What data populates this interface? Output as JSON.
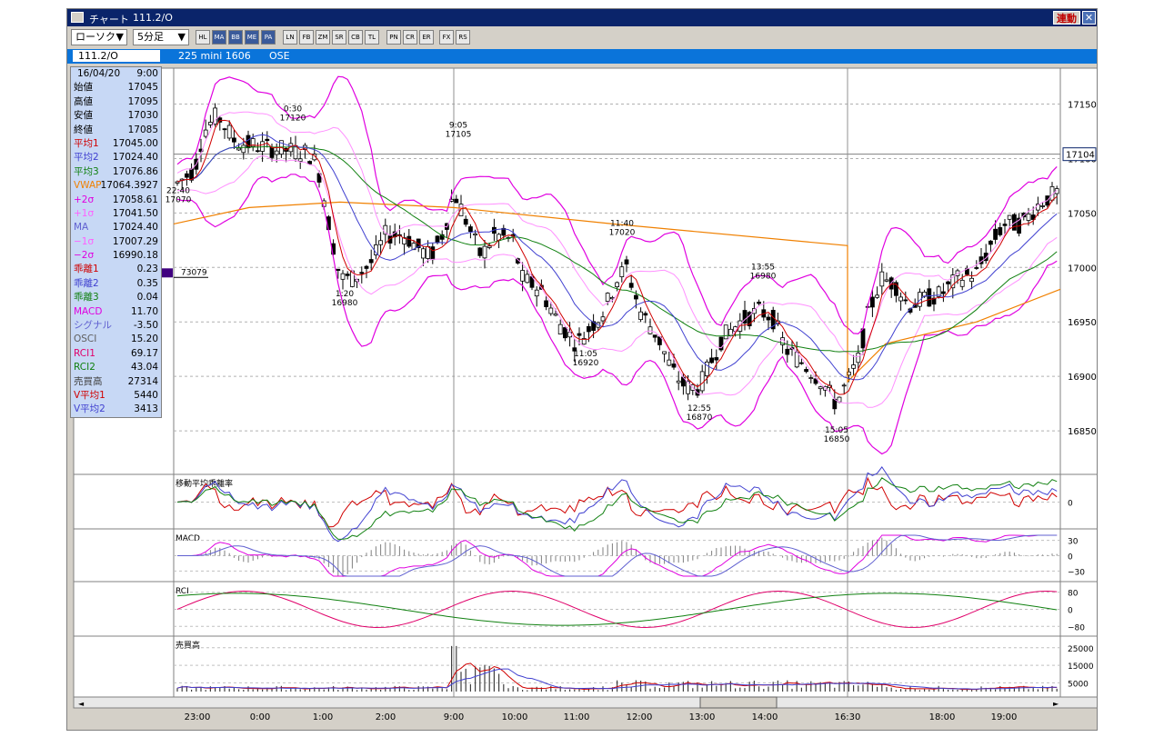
{
  "window": {
    "title": "チャート",
    "code_title": "111.2/O",
    "link_button": "連動",
    "close_glyph": "✕"
  },
  "toolbar": {
    "chart_type": "ローソク",
    "interval": "5分足",
    "dropdown_glyph": "▼",
    "buttons": [
      "HL",
      "MA",
      "BB",
      "ME",
      "PA",
      "LN",
      "FB",
      "ZM",
      "SR",
      "CB",
      "TL",
      "PN",
      "CR",
      "ER",
      "FX",
      "RS"
    ]
  },
  "infobar": {
    "code": "111.2/O",
    "name": "225 mini 1606",
    "exchange": "OSE"
  },
  "datapanel": {
    "date": "16/04/20",
    "time": "9:00",
    "rows": [
      {
        "label": "始値",
        "value": "17045",
        "color": "#000000"
      },
      {
        "label": "高値",
        "value": "17095",
        "color": "#000000"
      },
      {
        "label": "安値",
        "value": "17030",
        "color": "#000000"
      },
      {
        "label": "終値",
        "value": "17085",
        "color": "#000000"
      },
      {
        "label": "平均1",
        "value": "17045.00",
        "color": "#d00000"
      },
      {
        "label": "平均2",
        "value": "17024.40",
        "color": "#4040d0"
      },
      {
        "label": "平均3",
        "value": "17076.86",
        "color": "#108010"
      },
      {
        "label": "VWAP",
        "value": "17064.3927",
        "color": "#f08000"
      },
      {
        "label": "+2σ",
        "value": "17058.61",
        "color": "#e000e0"
      },
      {
        "label": "+1σ",
        "value": "17041.50",
        "color": "#ff60ff"
      },
      {
        "label": "MA",
        "value": "17024.40",
        "color": "#6060d0"
      },
      {
        "label": "−1σ",
        "value": "17007.29",
        "color": "#ff60ff"
      },
      {
        "label": "−2σ",
        "value": "16990.18",
        "color": "#e000e0"
      },
      {
        "label": "乖離1",
        "value": "0.23",
        "color": "#d00000"
      },
      {
        "label": "乖離2",
        "value": "0.35",
        "color": "#4040d0"
      },
      {
        "label": "乖離3",
        "value": "0.04",
        "color": "#108010"
      },
      {
        "label": "MACD",
        "value": "11.70",
        "color": "#e000e0"
      },
      {
        "label": "シグナル",
        "value": "-3.50",
        "color": "#6060d0"
      },
      {
        "label": "OSCI",
        "value": "15.20",
        "color": "#606060"
      },
      {
        "label": "RCI1",
        "value": "69.17",
        "color": "#e0006a"
      },
      {
        "label": "RCI2",
        "value": "43.04",
        "color": "#108010"
      },
      {
        "label": "売買高",
        "value": "27314",
        "color": "#404040"
      },
      {
        "label": "V平均1",
        "value": "5440",
        "color": "#d00000"
      },
      {
        "label": "V平均2",
        "value": "3413",
        "color": "#4040d0"
      }
    ]
  },
  "price_axis": {
    "ticks": [
      "17150",
      "17100",
      "17050",
      "17000",
      "16950",
      "16900",
      "16850"
    ],
    "current_price": "17104",
    "left_marker": "73079"
  },
  "annotations": [
    {
      "time": "0:30",
      "price": "17120"
    },
    {
      "time": "9:05",
      "price": "17105"
    },
    {
      "time": "22:40",
      "price": "17070"
    },
    {
      "time": "1:20",
      "price": "16980"
    },
    {
      "time": "11:40",
      "price": "17020"
    },
    {
      "time": "13:55",
      "price": "16980"
    },
    {
      "time": "11:05",
      "price": "16920"
    },
    {
      "time": "12:55",
      "price": "16870"
    },
    {
      "time": "15:05",
      "price": "16850"
    }
  ],
  "subpanels": {
    "deviation": {
      "title": "移動平均乖離率",
      "ticks": [
        "0"
      ]
    },
    "macd": {
      "title": "MACD",
      "ticks": [
        "30",
        "0",
        "−30"
      ]
    },
    "rci": {
      "title": "RCI",
      "ticks": [
        "80",
        "0",
        "−80"
      ]
    },
    "volume": {
      "title": "売買高",
      "ticks": [
        "25000",
        "15000",
        "5000"
      ]
    }
  },
  "time_axis": [
    "23:00",
    "0:00",
    "1:00",
    "2:00",
    "9:00",
    "10:00",
    "11:00",
    "12:00",
    "13:00",
    "14:00",
    "16:30",
    "18:00",
    "19:00"
  ],
  "scrollbar": {
    "left_arrow": "◄",
    "right_arrow": "►"
  },
  "colors": {
    "title_bar": "#0a246a",
    "info_bar": "#0a74da",
    "datapanel_bg": "#c7d8f5",
    "ma1": "#d00000",
    "ma2": "#4040d0",
    "ma3": "#108010",
    "vwap": "#f08000",
    "bb2": "#e000e0",
    "bb1": "#ff80ff"
  }
}
